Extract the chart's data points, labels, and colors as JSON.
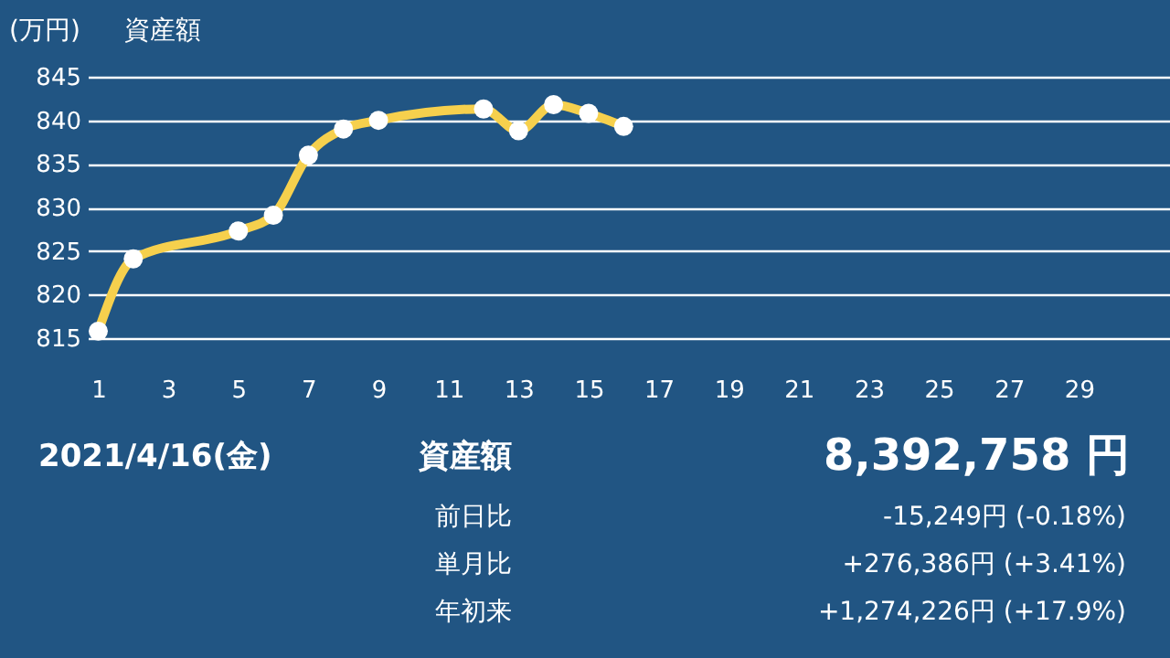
{
  "chart_data": {
    "type": "line",
    "title": "資産額",
    "ylabel": "(万円)",
    "x": [
      1,
      2,
      5,
      6,
      7,
      8,
      9,
      12,
      13,
      14,
      15,
      16
    ],
    "series": [
      {
        "color": "#f6d04d",
        "values": [
          815.8,
          824.1,
          827.3,
          829.1,
          836.0,
          839.0,
          840.0,
          841.3,
          838.8,
          841.8,
          840.8,
          839.3
        ]
      }
    ],
    "xlim": [
      0.7,
      31.6
    ],
    "xticks": [
      1,
      3,
      5,
      7,
      9,
      11,
      13,
      15,
      17,
      19,
      21,
      23,
      25,
      27,
      29
    ],
    "ylim": [
      815,
      845
    ],
    "yticks": [
      815,
      820,
      825,
      830,
      835,
      840,
      845
    ],
    "grid": "y",
    "marker": "circle",
    "line_style": "solid",
    "annotations": [
      "2021/4/16(金)",
      "資産額",
      "8,392,758 円",
      "前日比",
      "-15,249円 (-0.18%)",
      "単月比",
      "+276,386円 (+3.41%)",
      "年初来",
      "+1,274,226円 (+17.9%)"
    ]
  }
}
